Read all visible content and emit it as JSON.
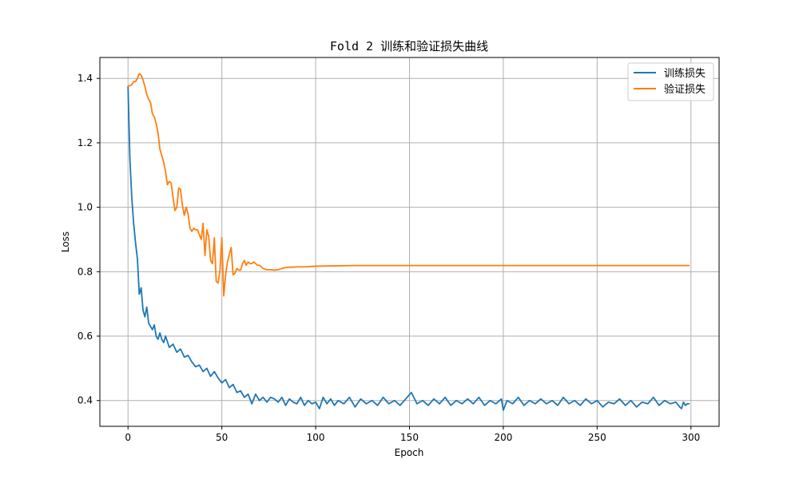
{
  "chart_data": {
    "type": "line",
    "title": "Fold 2 训练和验证损失曲线",
    "xlabel": "Epoch",
    "ylabel": "Loss",
    "xlim": [
      -15,
      315
    ],
    "ylim": [
      0.32,
      1.465
    ],
    "xticks": [
      0,
      50,
      100,
      150,
      200,
      250,
      300
    ],
    "yticks": [
      0.4,
      0.6,
      0.8,
      1.0,
      1.2,
      1.4
    ],
    "ytick_labels": [
      "0.4",
      "0.6",
      "0.8",
      "1.0",
      "1.2",
      "1.4"
    ],
    "grid": true,
    "legend_position": "top-right",
    "colors": {
      "train": "#1f77b4",
      "val": "#ff7f0e",
      "grid": "#b0b0b0",
      "axis": "#000000"
    },
    "series": [
      {
        "name": "训练损失",
        "color": "#1f77b4",
        "x": [
          0,
          1,
          2,
          3,
          4,
          5,
          6,
          7,
          8,
          9,
          10,
          11,
          12,
          13,
          14,
          15,
          16,
          17,
          18,
          19,
          20,
          22,
          24,
          26,
          28,
          30,
          32,
          34,
          36,
          38,
          40,
          42,
          44,
          46,
          48,
          50,
          52,
          54,
          56,
          58,
          60,
          62,
          64,
          66,
          68,
          70,
          72,
          74,
          76,
          78,
          80,
          82,
          84,
          86,
          88,
          90,
          92,
          94,
          96,
          98,
          100,
          102,
          104,
          106,
          108,
          110,
          112,
          115,
          118,
          121,
          124,
          127,
          130,
          133,
          136,
          139,
          142,
          145,
          148,
          151,
          154,
          157,
          160,
          163,
          166,
          169,
          172,
          175,
          178,
          181,
          184,
          187,
          190,
          193,
          196,
          199,
          200,
          202,
          205,
          208,
          211,
          214,
          217,
          220,
          223,
          226,
          229,
          232,
          235,
          238,
          241,
          244,
          247,
          250,
          253,
          256,
          259,
          262,
          265,
          268,
          271,
          274,
          277,
          280,
          283,
          286,
          289,
          292,
          294,
          295,
          296,
          297,
          298,
          299
        ],
        "values": [
          1.375,
          1.15,
          1.03,
          0.95,
          0.89,
          0.84,
          0.73,
          0.75,
          0.68,
          0.66,
          0.69,
          0.64,
          0.63,
          0.62,
          0.635,
          0.6,
          0.59,
          0.61,
          0.59,
          0.58,
          0.6,
          0.565,
          0.575,
          0.55,
          0.56,
          0.535,
          0.54,
          0.52,
          0.505,
          0.51,
          0.49,
          0.5,
          0.475,
          0.49,
          0.47,
          0.455,
          0.465,
          0.44,
          0.45,
          0.425,
          0.43,
          0.41,
          0.42,
          0.39,
          0.42,
          0.4,
          0.41,
          0.395,
          0.41,
          0.405,
          0.395,
          0.41,
          0.385,
          0.405,
          0.395,
          0.39,
          0.41,
          0.385,
          0.4,
          0.39,
          0.395,
          0.375,
          0.41,
          0.39,
          0.405,
          0.385,
          0.4,
          0.39,
          0.41,
          0.38,
          0.405,
          0.39,
          0.4,
          0.385,
          0.41,
          0.39,
          0.4,
          0.385,
          0.405,
          0.425,
          0.39,
          0.4,
          0.385,
          0.405,
          0.39,
          0.41,
          0.385,
          0.4,
          0.39,
          0.405,
          0.39,
          0.41,
          0.385,
          0.4,
          0.39,
          0.405,
          0.37,
          0.4,
          0.39,
          0.41,
          0.385,
          0.4,
          0.39,
          0.405,
          0.39,
          0.4,
          0.385,
          0.41,
          0.39,
          0.4,
          0.385,
          0.405,
          0.39,
          0.4,
          0.38,
          0.395,
          0.39,
          0.405,
          0.385,
          0.4,
          0.38,
          0.395,
          0.39,
          0.41,
          0.385,
          0.4,
          0.39,
          0.395,
          0.38,
          0.375,
          0.395,
          0.385,
          0.39,
          0.39
        ]
      },
      {
        "name": "验证损失",
        "color": "#ff7f0e",
        "x": [
          0,
          1,
          2,
          3,
          4,
          5,
          6,
          7,
          8,
          9,
          10,
          11,
          12,
          13,
          14,
          15,
          16,
          17,
          18,
          19,
          20,
          21,
          22,
          23,
          24,
          25,
          26,
          27,
          28,
          29,
          30,
          31,
          32,
          33,
          34,
          35,
          36,
          37,
          38,
          39,
          40,
          41,
          42,
          43,
          44,
          45,
          46,
          47,
          48,
          49,
          50,
          51,
          52,
          53,
          54,
          55,
          56,
          57,
          58,
          59,
          60,
          61,
          62,
          63,
          64,
          65,
          66,
          67,
          68,
          69,
          70,
          72,
          74,
          76,
          78,
          80,
          82,
          84,
          86,
          88,
          90,
          95,
          100,
          110,
          120,
          150,
          200,
          250,
          299
        ],
        "values": [
          1.375,
          1.378,
          1.38,
          1.39,
          1.39,
          1.4,
          1.415,
          1.41,
          1.395,
          1.375,
          1.35,
          1.335,
          1.325,
          1.29,
          1.28,
          1.26,
          1.23,
          1.18,
          1.16,
          1.14,
          1.11,
          1.07,
          1.08,
          1.075,
          1.03,
          0.99,
          1.0,
          1.06,
          1.055,
          1.005,
          0.975,
          1.0,
          0.98,
          0.935,
          0.925,
          0.935,
          0.93,
          0.93,
          0.915,
          0.9,
          0.95,
          0.85,
          0.93,
          0.91,
          0.835,
          0.825,
          0.905,
          0.77,
          0.765,
          0.805,
          0.905,
          0.725,
          0.79,
          0.83,
          0.855,
          0.875,
          0.79,
          0.795,
          0.81,
          0.805,
          0.805,
          0.825,
          0.835,
          0.82,
          0.83,
          0.825,
          0.825,
          0.83,
          0.825,
          0.82,
          0.82,
          0.81,
          0.806,
          0.806,
          0.805,
          0.806,
          0.81,
          0.813,
          0.814,
          0.814,
          0.815,
          0.815,
          0.817,
          0.818,
          0.819,
          0.819,
          0.819,
          0.819,
          0.819
        ]
      }
    ]
  }
}
